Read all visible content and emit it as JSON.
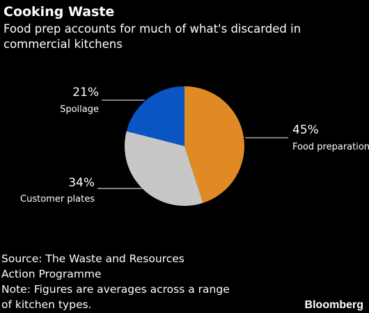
{
  "chart_data": {
    "type": "pie",
    "title": "Cooking Waste",
    "subtitle_lines": [
      "Food prep accounts for much of what's discarded in",
      "commercial kitchens"
    ],
    "slices": [
      {
        "label": "Food preparation",
        "value": 45,
        "value_label": "45%",
        "color": "#e08a24"
      },
      {
        "label": "Customer plates",
        "value": 34,
        "value_label": "34%",
        "color": "#c7c7c7"
      },
      {
        "label": "Spoilage",
        "value": 21,
        "value_label": "21%",
        "color": "#0a55c4"
      }
    ]
  },
  "footer": {
    "source_lines": [
      "Source: The Waste and Resources",
      "Action Programme"
    ],
    "note_lines": [
      "Note: Figures are averages across a range",
      "of kitchen types."
    ],
    "brand": "Bloomberg"
  }
}
